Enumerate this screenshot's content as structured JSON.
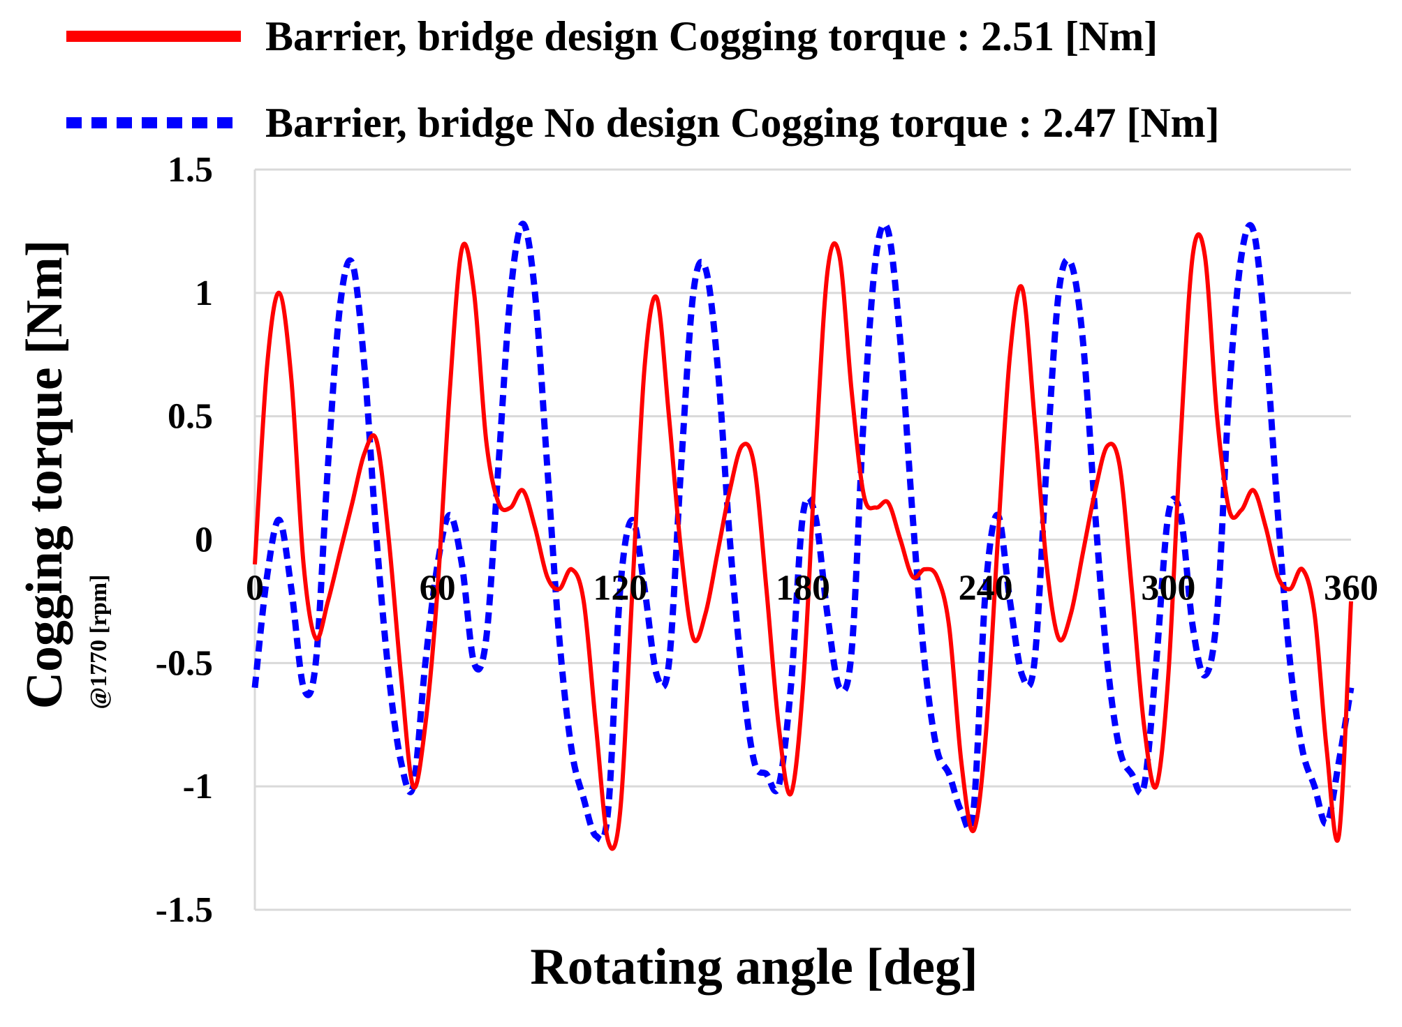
{
  "chart_data": {
    "type": "line",
    "xlabel": "Rotating angle [deg]",
    "ylabel": "Cogging torque [Nm]",
    "ylabel_sub": "@1770 [rpm]",
    "xlim": [
      0,
      360
    ],
    "ylim": [
      -1.5,
      1.5
    ],
    "x_ticks": [
      "0",
      "60",
      "120",
      "180",
      "240",
      "300",
      "360"
    ],
    "y_ticks": [
      "1.5",
      "1",
      "0.5",
      "0",
      "-0.5",
      "-1",
      "-1.5"
    ],
    "grid": "horizontal",
    "legend_position": "top",
    "series": [
      {
        "name": "Barrier, bridge design Cogging torque : 2.51 [Nm]",
        "color": "#ff0000",
        "line_style": "solid",
        "x": [
          0,
          4,
          8,
          12,
          16,
          20,
          24,
          28,
          32,
          36,
          40,
          44,
          48,
          52,
          56,
          60,
          64,
          68,
          72,
          76,
          80,
          84,
          88,
          92,
          96,
          100,
          104,
          108,
          112,
          116,
          120,
          124,
          128,
          132,
          136,
          140,
          144,
          148,
          152,
          156,
          160,
          164,
          168,
          172,
          176,
          180,
          184,
          188,
          192,
          196,
          200,
          204,
          208,
          212,
          216,
          220,
          224,
          228,
          232,
          236,
          240,
          244,
          248,
          252,
          256,
          260,
          264,
          268,
          272,
          276,
          280,
          284,
          288,
          292,
          296,
          300,
          304,
          308,
          312,
          316,
          320,
          324,
          328,
          332,
          336,
          340,
          344,
          348,
          352,
          356,
          360
        ],
        "values": [
          -0.1,
          0.7,
          1.0,
          0.65,
          -0.1,
          -0.4,
          -0.25,
          -0.05,
          0.15,
          0.35,
          0.4,
          0.0,
          -0.55,
          -1.0,
          -0.75,
          -0.2,
          0.6,
          1.18,
          1.0,
          0.4,
          0.15,
          0.13,
          0.2,
          0.05,
          -0.15,
          -0.2,
          -0.12,
          -0.25,
          -0.75,
          -1.22,
          -1.1,
          -0.2,
          0.7,
          0.98,
          0.5,
          -0.05,
          -0.4,
          -0.3,
          -0.05,
          0.2,
          0.38,
          0.3,
          -0.2,
          -0.75,
          -1.03,
          -0.6,
          0.3,
          1.08,
          1.15,
          0.6,
          0.18,
          0.13,
          0.15,
          0.0,
          -0.15,
          -0.12,
          -0.15,
          -0.35,
          -0.9,
          -1.18,
          -0.8,
          0.0,
          0.75,
          1.02,
          0.5,
          -0.1,
          -0.4,
          -0.3,
          -0.05,
          0.2,
          0.38,
          0.3,
          -0.2,
          -0.75,
          -1.0,
          -0.55,
          0.4,
          1.15,
          1.15,
          0.5,
          0.12,
          0.12,
          0.2,
          0.05,
          -0.15,
          -0.2,
          -0.12,
          -0.3,
          -0.85,
          -1.2,
          -0.25
        ]
      },
      {
        "name": "Barrier, bridge No design Cogging torque : 2.47 [Nm]",
        "color": "#0000ff",
        "line_style": "dotted",
        "x": [
          0,
          4,
          8,
          12,
          16,
          20,
          24,
          28,
          32,
          36,
          40,
          44,
          48,
          52,
          56,
          60,
          64,
          68,
          72,
          76,
          80,
          84,
          88,
          92,
          96,
          100,
          104,
          108,
          112,
          116,
          120,
          124,
          128,
          132,
          136,
          140,
          144,
          148,
          152,
          156,
          160,
          164,
          168,
          172,
          176,
          180,
          184,
          188,
          192,
          196,
          200,
          204,
          208,
          212,
          216,
          220,
          224,
          228,
          232,
          236,
          240,
          244,
          248,
          252,
          256,
          260,
          264,
          268,
          272,
          276,
          280,
          284,
          288,
          292,
          296,
          300,
          304,
          308,
          312,
          316,
          320,
          324,
          328,
          332,
          336,
          340,
          344,
          348,
          352,
          356,
          360
        ],
        "values": [
          -0.6,
          -0.15,
          0.08,
          -0.2,
          -0.6,
          -0.5,
          0.3,
          0.95,
          1.12,
          0.7,
          0.0,
          -0.55,
          -0.9,
          -1.0,
          -0.5,
          -0.1,
          0.1,
          -0.1,
          -0.5,
          -0.4,
          0.3,
          1.0,
          1.28,
          1.0,
          0.3,
          -0.4,
          -0.85,
          -1.05,
          -1.2,
          -1.1,
          -0.2,
          0.08,
          -0.2,
          -0.55,
          -0.5,
          0.3,
          1.0,
          1.1,
          0.7,
          0.0,
          -0.55,
          -0.9,
          -0.95,
          -1.0,
          -0.6,
          0.1,
          0.1,
          -0.3,
          -0.6,
          -0.45,
          0.5,
          1.15,
          1.25,
          0.8,
          0.1,
          -0.5,
          -0.85,
          -0.95,
          -1.1,
          -1.1,
          -0.2,
          0.1,
          -0.25,
          -0.55,
          -0.5,
          0.3,
          1.0,
          1.12,
          0.8,
          0.1,
          -0.5,
          -0.85,
          -0.95,
          -1.0,
          -0.5,
          0.1,
          0.1,
          -0.35,
          -0.55,
          -0.3,
          0.6,
          1.15,
          1.25,
          0.8,
          0.1,
          -0.5,
          -0.85,
          -1.0,
          -1.15,
          -0.9,
          -0.6
        ]
      }
    ]
  }
}
